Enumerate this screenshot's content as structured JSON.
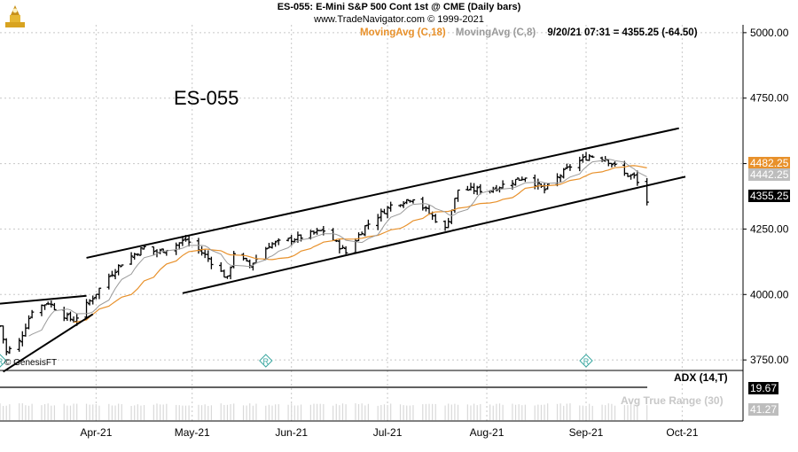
{
  "header": {
    "title": "ES-055:  E-Mini S&P 500 Cont 1st @ CME  (Daily bars)",
    "source": "www.TradeNavigator.com © 1999-2021",
    "ma18_label": "MovingAvg (C,18)",
    "ma8_label": "MovingAvg (C,8)",
    "quote": "9/20/21 07:31 = 4355.25 (-64.50)"
  },
  "chart_label": "ES-055",
  "watermark": "© GenesisFT",
  "indicators": {
    "adx_label": "ADX (14,T)",
    "adx_value": "19.67",
    "atr_label": "Avg True Range (30)",
    "atr_value": "41.27"
  },
  "price_tags": {
    "ma18": "4482.25",
    "ma8": "4442.25",
    "last": "4355.25"
  },
  "colors": {
    "bar": "#000000",
    "ma18": "#e8912b",
    "ma8": "#9a9a9a",
    "grid": "#c8c8c8",
    "r_marker": "#3aa7a0"
  },
  "chart_data": {
    "type": "ohlc",
    "title": "ES-055:  E-Mini S&P 500 Cont 1st @ CME  (Daily bars)",
    "y_ticks": [
      "5000.00",
      "4750.00",
      "4500.00",
      "4250.00",
      "4000.00",
      "3750.00"
    ],
    "ylim": [
      3720,
      5030
    ],
    "x_ticks": [
      "Apr-21",
      "May-21",
      "Jun-21",
      "Jul-21",
      "Aug-21",
      "Sep-21",
      "Oct-21"
    ],
    "xlim": [
      "2021-03-02",
      "2021-10-20"
    ],
    "grid": true,
    "series": [
      {
        "name": "MovingAvg (C,18)",
        "last": 4482.25
      },
      {
        "name": "MovingAvg (C,8)",
        "last": 4442.25
      }
    ],
    "trendlines": [
      {
        "from": [
          "2021-03-29",
          4140
        ],
        "to": [
          "2021-09-30",
          4635
        ]
      },
      {
        "from": [
          "2021-04-28",
          4005
        ],
        "to": [
          "2021-10-02",
          4450
        ]
      },
      {
        "from": [
          "2021-03-03",
          3705
        ],
        "to": [
          "2021-03-31",
          3925
        ]
      },
      {
        "from": [
          "2021-03-02",
          3965
        ],
        "to": [
          "2021-03-29",
          3995
        ]
      }
    ],
    "r_markers": [
      "2021-03-02",
      "2021-05-24",
      "2021-09-01"
    ],
    "last_close": 4355.25,
    "change": -64.5
  }
}
